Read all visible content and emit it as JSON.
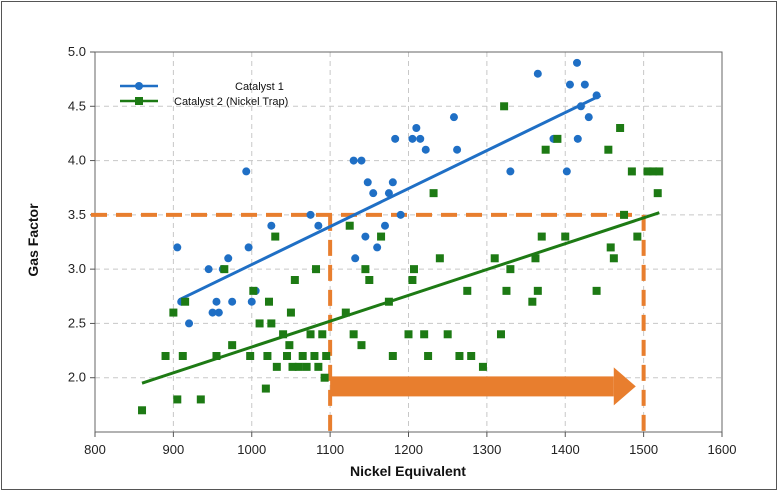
{
  "chart_data": {
    "type": "scatter",
    "title": "",
    "xlabel": "Nickel Equivalent",
    "ylabel": "Gas Factor",
    "xlim": [
      800,
      1600
    ],
    "ylim": [
      1.5,
      5.0
    ],
    "xticks": [
      800,
      900,
      1000,
      1100,
      1200,
      1300,
      1400,
      1500,
      1600
    ],
    "yticks": [
      2.0,
      2.5,
      3.0,
      3.5,
      4.0,
      4.5,
      5.0
    ],
    "ytick_labels": [
      "2.0",
      "2.5",
      "3.0",
      "3.5",
      "4.0",
      "4.5",
      "5.0"
    ],
    "grid": true,
    "legend_position": "top-left",
    "series": [
      {
        "name": "Catalyst 1",
        "color": "#1f6fc5",
        "marker": "circle",
        "points": [
          [
            905,
            3.2
          ],
          [
            910,
            2.7
          ],
          [
            920,
            2.5
          ],
          [
            945,
            3.0
          ],
          [
            950,
            2.6
          ],
          [
            955,
            2.7
          ],
          [
            958,
            2.6
          ],
          [
            963,
            3.0
          ],
          [
            970,
            3.1
          ],
          [
            975,
            2.7
          ],
          [
            993,
            3.9
          ],
          [
            996,
            3.2
          ],
          [
            1000,
            2.7
          ],
          [
            1005,
            2.8
          ],
          [
            1025,
            3.4
          ],
          [
            1075,
            3.5
          ],
          [
            1085,
            3.4
          ],
          [
            1130,
            4.0
          ],
          [
            1132,
            3.1
          ],
          [
            1140,
            4.0
          ],
          [
            1145,
            3.3
          ],
          [
            1148,
            3.8
          ],
          [
            1155,
            3.7
          ],
          [
            1160,
            3.2
          ],
          [
            1170,
            3.4
          ],
          [
            1175,
            3.7
          ],
          [
            1180,
            3.8
          ],
          [
            1183,
            4.2
          ],
          [
            1190,
            3.5
          ],
          [
            1205,
            4.2
          ],
          [
            1210,
            4.3
          ],
          [
            1215,
            4.2
          ],
          [
            1222,
            4.1
          ],
          [
            1258,
            4.4
          ],
          [
            1262,
            4.1
          ],
          [
            1330,
            3.9
          ],
          [
            1365,
            4.8
          ],
          [
            1385,
            4.2
          ],
          [
            1402,
            3.9
          ],
          [
            1406,
            4.7
          ],
          [
            1415,
            4.9
          ],
          [
            1416,
            4.2
          ],
          [
            1420,
            4.5
          ],
          [
            1425,
            4.7
          ],
          [
            1430,
            4.4
          ],
          [
            1440,
            4.6
          ]
        ],
        "trend": [
          [
            908,
            2.72
          ],
          [
            1445,
            4.6
          ]
        ]
      },
      {
        "name": "Catalyst 2 (Nickel Trap)",
        "color": "#1d7a14",
        "marker": "square",
        "points": [
          [
            860,
            1.7
          ],
          [
            890,
            2.2
          ],
          [
            900,
            2.6
          ],
          [
            905,
            1.8
          ],
          [
            912,
            2.2
          ],
          [
            915,
            2.7
          ],
          [
            935,
            1.8
          ],
          [
            955,
            2.2
          ],
          [
            965,
            3.0
          ],
          [
            975,
            2.3
          ],
          [
            998,
            2.2
          ],
          [
            1002,
            2.8
          ],
          [
            1010,
            2.5
          ],
          [
            1018,
            1.9
          ],
          [
            1020,
            2.2
          ],
          [
            1022,
            2.7
          ],
          [
            1025,
            2.5
          ],
          [
            1030,
            3.3
          ],
          [
            1032,
            2.1
          ],
          [
            1040,
            2.4
          ],
          [
            1045,
            2.2
          ],
          [
            1048,
            2.3
          ],
          [
            1050,
            2.6
          ],
          [
            1052,
            2.1
          ],
          [
            1055,
            2.9
          ],
          [
            1060,
            2.1
          ],
          [
            1065,
            2.2
          ],
          [
            1070,
            2.1
          ],
          [
            1075,
            2.4
          ],
          [
            1080,
            2.2
          ],
          [
            1082,
            3.0
          ],
          [
            1085,
            2.1
          ],
          [
            1090,
            2.4
          ],
          [
            1093,
            2.0
          ],
          [
            1095,
            2.2
          ],
          [
            1120,
            2.6
          ],
          [
            1125,
            3.4
          ],
          [
            1130,
            2.4
          ],
          [
            1140,
            2.3
          ],
          [
            1145,
            3.0
          ],
          [
            1150,
            2.9
          ],
          [
            1165,
            3.3
          ],
          [
            1175,
            2.7
          ],
          [
            1180,
            2.2
          ],
          [
            1200,
            2.4
          ],
          [
            1205,
            2.9
          ],
          [
            1207,
            3.0
          ],
          [
            1220,
            2.4
          ],
          [
            1225,
            2.2
          ],
          [
            1232,
            3.7
          ],
          [
            1240,
            3.1
          ],
          [
            1250,
            2.4
          ],
          [
            1265,
            2.2
          ],
          [
            1275,
            2.8
          ],
          [
            1280,
            2.2
          ],
          [
            1295,
            2.1
          ],
          [
            1310,
            3.1
          ],
          [
            1318,
            2.4
          ],
          [
            1322,
            4.5
          ],
          [
            1325,
            2.8
          ],
          [
            1330,
            3.0
          ],
          [
            1358,
            2.7
          ],
          [
            1362,
            3.1
          ],
          [
            1365,
            2.8
          ],
          [
            1370,
            3.3
          ],
          [
            1375,
            4.1
          ],
          [
            1390,
            4.2
          ],
          [
            1400,
            3.3
          ],
          [
            1440,
            2.8
          ],
          [
            1455,
            4.1
          ],
          [
            1458,
            3.2
          ],
          [
            1462,
            3.1
          ],
          [
            1470,
            4.3
          ],
          [
            1475,
            3.5
          ],
          [
            1485,
            3.9
          ],
          [
            1492,
            3.3
          ],
          [
            1505,
            3.9
          ],
          [
            1512,
            3.9
          ],
          [
            1518,
            3.7
          ],
          [
            1520,
            3.9
          ]
        ],
        "trend": [
          [
            860,
            1.95
          ],
          [
            1520,
            3.52
          ]
        ]
      }
    ],
    "annotations": [
      {
        "kind": "dashed-hline",
        "y": 3.5,
        "x_from": 800,
        "x_to": 1490,
        "color": "#e87e2e"
      },
      {
        "kind": "dashed-vline",
        "x": 1100,
        "y_from": 1.5,
        "y_to": 3.5,
        "color": "#e87e2e"
      },
      {
        "kind": "dashed-vline",
        "x": 1500,
        "y_from": 1.5,
        "y_to": 3.5,
        "color": "#e87e2e"
      },
      {
        "kind": "arrow",
        "from": [
          1100,
          1.92
        ],
        "to": [
          1490,
          1.92
        ],
        "color": "#e87e2e"
      }
    ]
  }
}
